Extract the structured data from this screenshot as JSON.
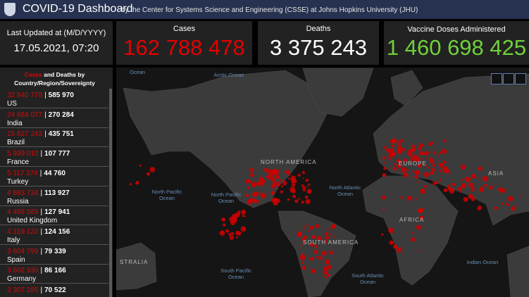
{
  "header": {
    "title": "COVID-19 Dashboard",
    "subtitle": "by the Center for Systems Science and Engineering (CSSE) at Johns Hopkins University (JHU)"
  },
  "last_updated": {
    "label": "Last Updated at (M/D/YYYY)",
    "value": "17.05.2021, 07:20"
  },
  "stats": {
    "cases": {
      "label": "Cases",
      "value": "162 788 478"
    },
    "deaths": {
      "label": "Deaths",
      "value": "3 375 243"
    },
    "vaccines": {
      "label": "Vaccine Doses Administered",
      "value": "1 460 698 425"
    }
  },
  "list": {
    "heading_cases": "Cases",
    "heading_and": "and",
    "heading_deaths": "Deaths",
    "heading_by": "by",
    "heading_rest": "Country/Region/Sovereignty",
    "rows": [
      {
        "cases": "32 940 778",
        "deaths": "585 970",
        "country": "US"
      },
      {
        "cases": "24 684 077",
        "deaths": "270 284",
        "country": "India"
      },
      {
        "cases": "15 627 243",
        "deaths": "435 751",
        "country": "Brazil"
      },
      {
        "cases": "5 939 010",
        "deaths": "107 777",
        "country": "France"
      },
      {
        "cases": "5 117 374",
        "deaths": "44 760",
        "country": "Turkey"
      },
      {
        "cases": "4 883 734",
        "deaths": "113 927",
        "country": "Russia"
      },
      {
        "cases": "4 466 589",
        "deaths": "127 941",
        "country": "United Kingdom"
      },
      {
        "cases": "4 159 122",
        "deaths": "124 156",
        "country": "Italy"
      },
      {
        "cases": "3 604 799",
        "deaths": "79 339",
        "country": "Spain"
      },
      {
        "cases": "3 602 939",
        "deaths": "86 166",
        "country": "Germany"
      },
      {
        "cases": "3 307 285",
        "deaths": "70 522"
      }
    ]
  },
  "map": {
    "labels": [
      "Ocean",
      "Arctic Ocean",
      "NORTH AMERICA",
      "North Pacific Ocean",
      "North Pacific Ocean",
      "North Atlantic Ocean",
      "EUROPE",
      "ASIA",
      "AFRICA",
      "SOUTH AMERICA",
      "STRALIA",
      "South Pacific Ocean",
      "South Atlantic Ocean",
      "Indian Ocean"
    ]
  }
}
